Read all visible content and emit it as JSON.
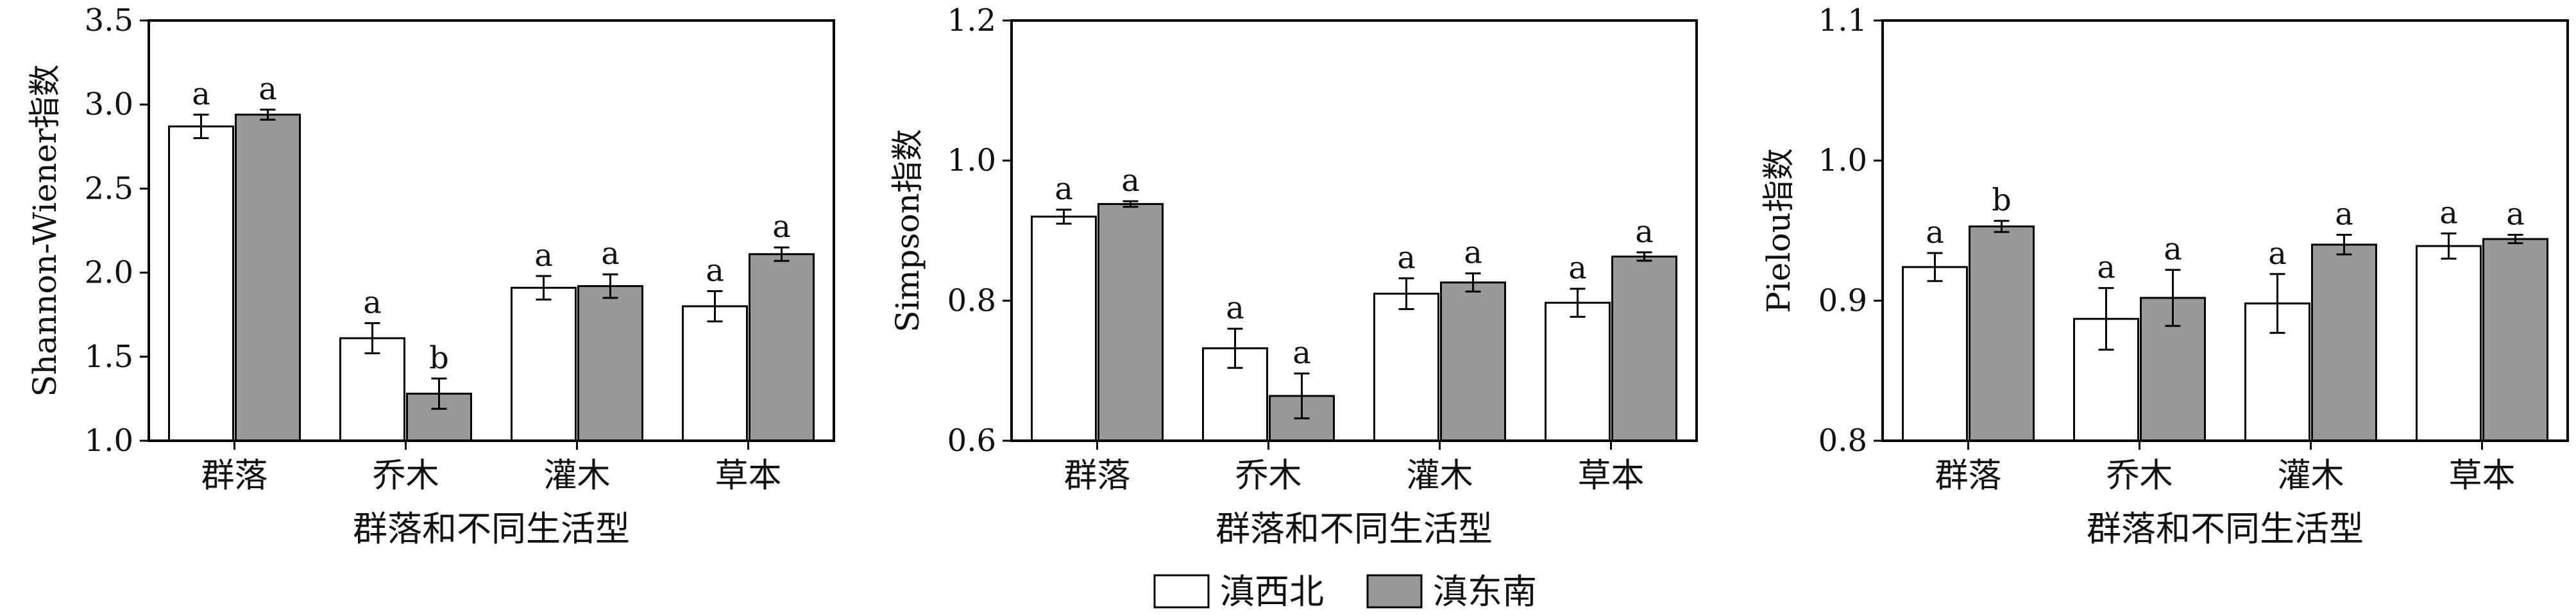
{
  "legend": {
    "entries": [
      {
        "label": "滇西北",
        "color": "#ffffff"
      },
      {
        "label": "滇东南",
        "color": "#999999"
      }
    ]
  },
  "chart_data": [
    {
      "type": "bar",
      "ylabel": "Shannon-Wiener指数",
      "xlabel": "群落和不同生活型",
      "categories": [
        "群落",
        "乔木",
        "灌木",
        "草本"
      ],
      "ylim": [
        1.0,
        3.5
      ],
      "yticks": [
        "1.0",
        "1.5",
        "2.0",
        "2.5",
        "3.0",
        "3.5"
      ],
      "series": [
        {
          "name": "滇西北",
          "color": "#ffffff",
          "values": [
            2.87,
            1.61,
            1.91,
            1.8
          ],
          "errors": [
            0.07,
            0.09,
            0.07,
            0.09
          ],
          "letters": [
            "a",
            "a",
            "a",
            "a"
          ]
        },
        {
          "name": "滇东南",
          "color": "#999999",
          "values": [
            2.94,
            1.28,
            1.92,
            2.11
          ],
          "errors": [
            0.03,
            0.09,
            0.07,
            0.04
          ],
          "letters": [
            "a",
            "b",
            "a",
            "a"
          ]
        }
      ]
    },
    {
      "type": "bar",
      "ylabel": "Simpson指数",
      "xlabel": "群落和不同生活型",
      "categories": [
        "群落",
        "乔木",
        "灌木",
        "草本"
      ],
      "ylim": [
        0.6,
        1.2
      ],
      "yticks": [
        "0.6",
        "0.8",
        "1.0",
        "1.2"
      ],
      "series": [
        {
          "name": "滇西北",
          "color": "#ffffff",
          "values": [
            0.92,
            0.732,
            0.81,
            0.797
          ],
          "errors": [
            0.01,
            0.028,
            0.022,
            0.02
          ],
          "letters": [
            "a",
            "a",
            "a",
            "a"
          ]
        },
        {
          "name": "滇东南",
          "color": "#999999",
          "values": [
            0.938,
            0.664,
            0.826,
            0.863
          ],
          "errors": [
            0.004,
            0.032,
            0.013,
            0.006
          ],
          "letters": [
            "a",
            "a",
            "a",
            "a"
          ]
        }
      ]
    },
    {
      "type": "bar",
      "ylabel": "Pielou指数",
      "xlabel": "群落和不同生活型",
      "categories": [
        "群落",
        "乔木",
        "灌木",
        "草本"
      ],
      "ylim": [
        0.8,
        1.1
      ],
      "yticks": [
        "0.8",
        "0.9",
        "1.0",
        "1.1"
      ],
      "series": [
        {
          "name": "滇西北",
          "color": "#ffffff",
          "values": [
            0.924,
            0.887,
            0.898,
            0.939
          ],
          "errors": [
            0.01,
            0.022,
            0.021,
            0.009
          ],
          "letters": [
            "a",
            "a",
            "a",
            "a"
          ]
        },
        {
          "name": "滇东南",
          "color": "#999999",
          "values": [
            0.953,
            0.902,
            0.94,
            0.944
          ],
          "errors": [
            0.004,
            0.02,
            0.007,
            0.003
          ],
          "letters": [
            "b",
            "a",
            "a",
            "a"
          ]
        }
      ]
    }
  ]
}
